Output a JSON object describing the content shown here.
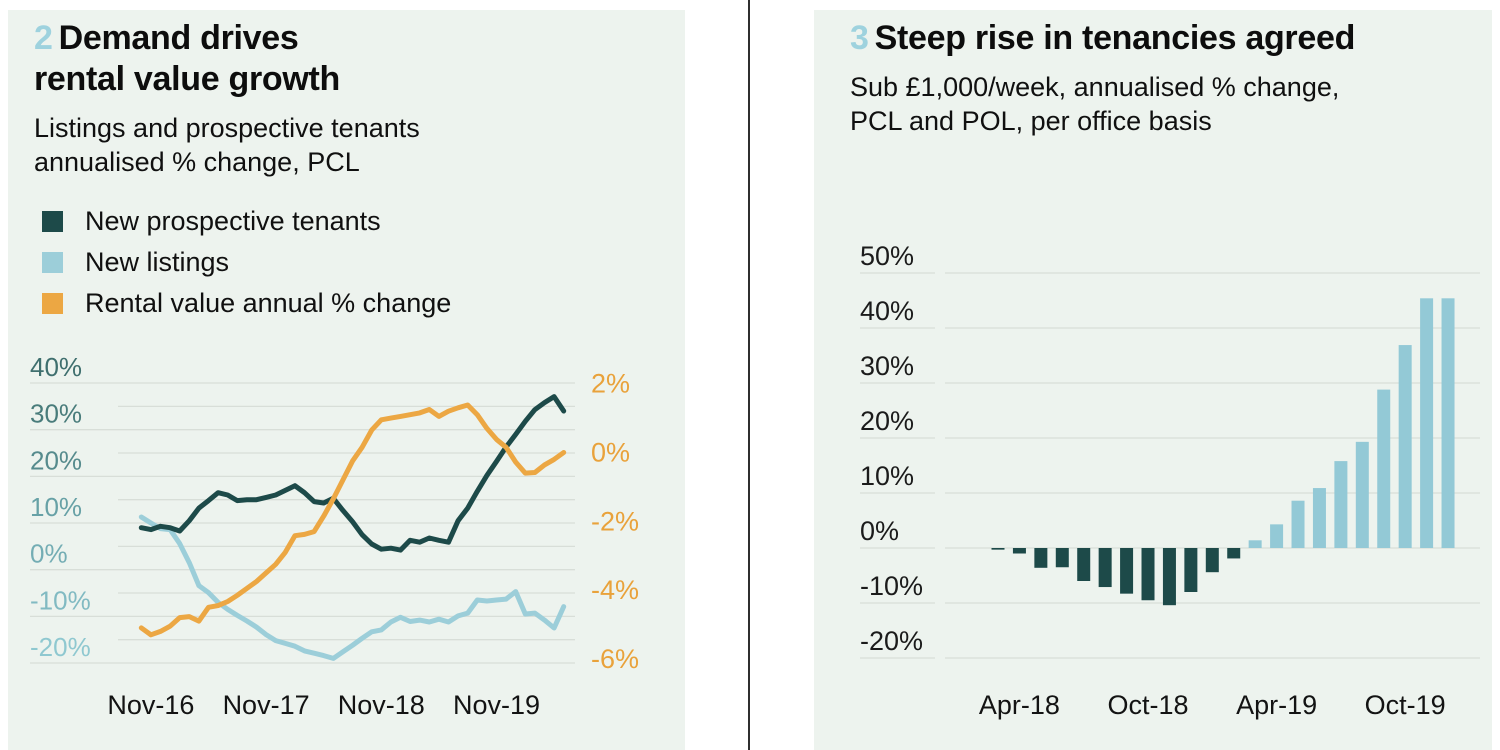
{
  "page": {
    "background": "#ffffff",
    "panel_background": "#edf3ee",
    "divider_color": "#2f2f2f",
    "gridline_color": "#d8ded8",
    "accent_number_color": "#9ed2de"
  },
  "left_panel": {
    "number": "2",
    "title_line1": "Demand drives",
    "title_line2": "rental value growth",
    "subtitle_line1": "Listings and prospective tenants",
    "subtitle_line2": "annualised % change, PCL",
    "legend": [
      {
        "label": "New prospective tenants",
        "color": "#1d4a49"
      },
      {
        "label": "New listings",
        "color": "#9cced9"
      },
      {
        "label": "Rental value annual % change",
        "color": "#eca743"
      }
    ]
  },
  "right_panel": {
    "number": "3",
    "title_line1": "Steep rise in tenancies agreed",
    "subtitle_line1": "Sub £1,000/week, annualised % change,",
    "subtitle_line2": "PCL and POL, per office basis"
  },
  "chart_data": [
    {
      "type": "line",
      "title": "2 Demand drives rental value growth",
      "subtitle": "Listings and prospective tenants annualised % change, PCL",
      "grid": true,
      "gridline_step_left_pct": 5,
      "legend_position": "top-left",
      "x": [
        "Oct-16",
        "Nov-16",
        "Dec-16",
        "Jan-17",
        "Feb-17",
        "Mar-17",
        "Apr-17",
        "May-17",
        "Jun-17",
        "Jul-17",
        "Aug-17",
        "Sep-17",
        "Oct-17",
        "Nov-17",
        "Dec-17",
        "Jan-18",
        "Feb-18",
        "Mar-18",
        "Apr-18",
        "May-18",
        "Jun-18",
        "Jul-18",
        "Aug-18",
        "Sep-18",
        "Oct-18",
        "Nov-18",
        "Dec-18",
        "Jan-19",
        "Feb-19",
        "Mar-19",
        "Apr-19",
        "May-19",
        "Jun-19",
        "Jul-19",
        "Aug-19",
        "Sep-19",
        "Oct-19",
        "Nov-19",
        "Dec-19",
        "Jan-20",
        "Feb-20",
        "Mar-20",
        "Apr-20",
        "May-20",
        "Jun-20"
      ],
      "x_ticks": [
        {
          "label": "Nov-16",
          "m": 1
        },
        {
          "label": "Nov-17",
          "m": 13
        },
        {
          "label": "Nov-18",
          "m": 25
        },
        {
          "label": "Nov-19",
          "m": 37
        }
      ],
      "y_left": {
        "range": [
          -20,
          40
        ],
        "ticks": [
          {
            "v": 40,
            "label": "40%",
            "color": "#3f6f6e"
          },
          {
            "v": 30,
            "label": "30%",
            "color": "#497c7b"
          },
          {
            "v": 20,
            "label": "20%",
            "color": "#568b8d"
          },
          {
            "v": 10,
            "label": "10%",
            "color": "#67a1a6"
          },
          {
            "v": 0,
            "label": "0%",
            "color": "#74adb4"
          },
          {
            "v": -10,
            "label": "-10%",
            "color": "#81bac2"
          },
          {
            "v": -20,
            "label": "-20%",
            "color": "#8fc8d0"
          }
        ]
      },
      "y_right": {
        "range": [
          -6,
          2
        ],
        "color": "#e9a23b",
        "ticks": [
          {
            "v": 2,
            "label": "2%"
          },
          {
            "v": 0,
            "label": "0%"
          },
          {
            "v": -2,
            "label": "-2%"
          },
          {
            "v": -4,
            "label": "-4%"
          },
          {
            "v": -6,
            "label": "-6%"
          }
        ]
      },
      "series": [
        {
          "name": "New prospective tenants",
          "axis": "left",
          "color": "#1d4a49",
          "values": [
            9,
            8.6,
            9.3,
            9,
            8.3,
            10.5,
            13.2,
            14.8,
            16.5,
            16,
            14.8,
            15,
            15,
            15.5,
            16,
            17,
            18,
            16.5,
            14.6,
            14.3,
            15.3,
            12.7,
            10.3,
            7.5,
            5.5,
            4.4,
            4.6,
            4.2,
            6.3,
            5.9,
            6.8,
            6.3,
            5.9,
            10.5,
            13.2,
            16.8,
            20.2,
            23.2,
            26.3,
            29,
            31.8,
            34.3,
            35.8,
            37.1,
            34
          ]
        },
        {
          "name": "New listings",
          "axis": "left",
          "color": "#9cced9",
          "values": [
            11.3,
            10,
            8.8,
            8.6,
            5.6,
            1.5,
            -3.4,
            -4.9,
            -7,
            -8.5,
            -9.8,
            -11,
            -12.3,
            -13.9,
            -15.2,
            -15.8,
            -16.4,
            -17.4,
            -17.9,
            -18.4,
            -19,
            -17.6,
            -16.2,
            -14.7,
            -13.3,
            -12.9,
            -11.2,
            -10.2,
            -11.1,
            -10.8,
            -11.2,
            -10.6,
            -11.2,
            -9.9,
            -9.3,
            -6.5,
            -6.7,
            -6.5,
            -6.3,
            -4.7,
            -9.5,
            -9.3,
            -10.8,
            -12.5,
            -7.9
          ]
        },
        {
          "name": "Rental value annual % change",
          "axis": "right",
          "color": "#eca743",
          "values": [
            -5.1,
            -5.3,
            -5.2,
            -5.05,
            -4.8,
            -4.77,
            -4.9,
            -4.5,
            -4.45,
            -4.33,
            -4.15,
            -3.95,
            -3.75,
            -3.5,
            -3.25,
            -2.9,
            -2.42,
            -2.38,
            -2.3,
            -1.85,
            -1.35,
            -0.8,
            -0.25,
            0.15,
            0.65,
            0.95,
            1,
            1.05,
            1.1,
            1.15,
            1.25,
            1.05,
            1.2,
            1.3,
            1.38,
            1.1,
            0.7,
            0.38,
            0.15,
            -0.28,
            -0.6,
            -0.58,
            -0.36,
            -0.2,
            0
          ]
        }
      ]
    },
    {
      "type": "bar",
      "title": "3 Steep rise in tenancies agreed",
      "subtitle": "Sub £1,000/week, annualised % change, PCL and POL, per office basis",
      "grid": true,
      "ylim": [
        -20,
        50
      ],
      "bar_color_positive": "#93c9d6",
      "bar_color_negative": "#1d4a49",
      "categories": [
        "Mar-18",
        "Apr-18",
        "May-18",
        "Jun-18",
        "Jul-18",
        "Aug-18",
        "Sep-18",
        "Oct-18",
        "Nov-18",
        "Dec-18",
        "Jan-19",
        "Feb-19",
        "Mar-19",
        "Apr-19",
        "May-19",
        "Jun-19",
        "Jul-19",
        "Aug-19",
        "Sep-19",
        "Oct-19",
        "Nov-19",
        "Dec-19"
      ],
      "values": [
        -0.3,
        -1,
        -3.6,
        -3.5,
        -6,
        -7.1,
        -8.3,
        -9.5,
        -10.4,
        -8,
        -4.4,
        -1.9,
        1.4,
        4.3,
        8.6,
        10.9,
        15.8,
        19.3,
        28.8,
        36.9,
        45.4,
        45.4
      ],
      "y_ticks": [
        {
          "v": 50,
          "label": "50%"
        },
        {
          "v": 40,
          "label": "40%"
        },
        {
          "v": 30,
          "label": "30%"
        },
        {
          "v": 20,
          "label": "20%"
        },
        {
          "v": 10,
          "label": "10%"
        },
        {
          "v": 0,
          "label": "0%"
        },
        {
          "v": -10,
          "label": "-10%"
        },
        {
          "v": -20,
          "label": "-20%"
        }
      ],
      "x_ticks": [
        {
          "label": "Apr-18",
          "i": 1
        },
        {
          "label": "Oct-18",
          "i": 7
        },
        {
          "label": "Apr-19",
          "i": 13
        },
        {
          "label": "Oct-19",
          "i": 19
        }
      ]
    }
  ]
}
